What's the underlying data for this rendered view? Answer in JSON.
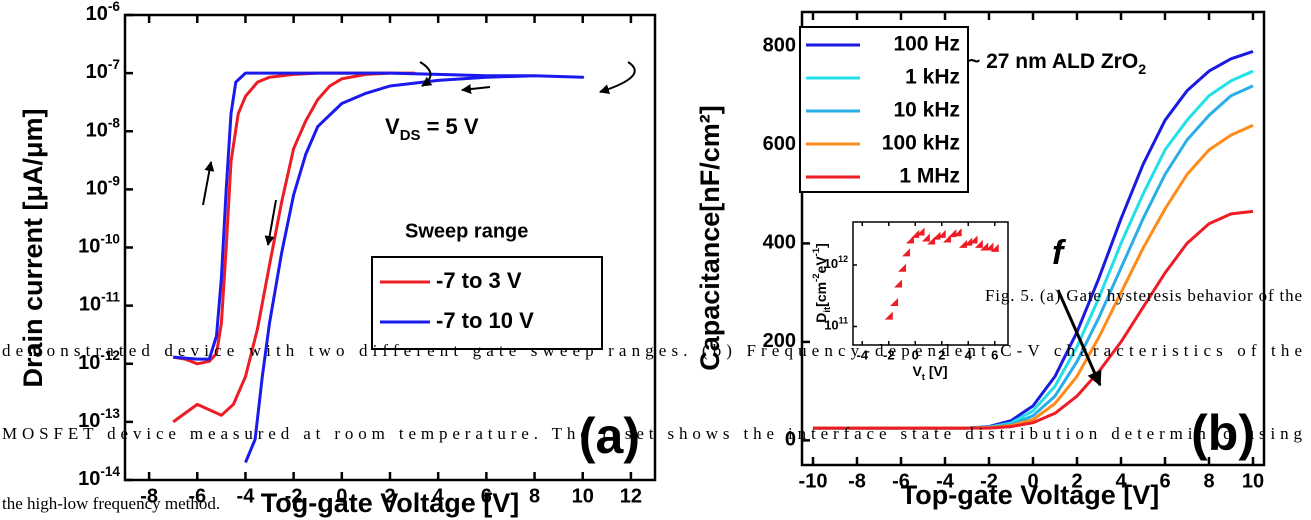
{
  "chart_data": [
    {
      "type": "line",
      "y_label": "Drain current [μA/μm]",
      "x_label": "Tog-gate Voltage [V]",
      "log_y": true,
      "xlim": [
        -9,
        13
      ],
      "xticks": [
        -8,
        -6,
        -4,
        -2,
        0,
        2,
        4,
        6,
        8,
        10,
        12
      ],
      "ylim": [
        1e-14,
        1e-06
      ],
      "yticks": [
        {
          "value": 1e-06,
          "label": [
            "10",
            "-6"
          ]
        },
        {
          "value": 1e-07,
          "label": [
            "10",
            "-7"
          ]
        },
        {
          "value": 1e-08,
          "label": [
            "10",
            "-8"
          ]
        },
        {
          "value": 1e-09,
          "label": [
            "10",
            "-9"
          ]
        },
        {
          "value": 1e-10,
          "label": [
            "10",
            "-10"
          ]
        },
        {
          "value": 1e-11,
          "label": [
            "10",
            "-11"
          ]
        },
        {
          "value": 1e-12,
          "label": [
            "10",
            "-12"
          ]
        },
        {
          "value": 1e-13,
          "label": [
            "10",
            "-13"
          ]
        },
        {
          "value": 1e-14,
          "label": [
            "10",
            "-14"
          ]
        }
      ],
      "annotations": {
        "vds": [
          "V",
          "DS",
          " = 5 V"
        ],
        "legend_title": "Sweep range",
        "panel": "(a)"
      },
      "series": [
        {
          "name": "-7 to 3 V",
          "color": "#ee1c24",
          "x": [
            -7,
            -6.5,
            -6,
            -5.5,
            -5.2,
            -5,
            -4.8,
            -4.6,
            -4.3,
            -4,
            -3.5,
            -3,
            -2,
            -1,
            0,
            1,
            2,
            3,
            2,
            1,
            0,
            -0.5,
            -1,
            -1.5,
            -2,
            -2.5,
            -3,
            -3.5,
            -4,
            -4.5,
            -5,
            -6,
            -7
          ],
          "values": [
            1.3e-12,
            1.2e-12,
            1e-12,
            1.1e-12,
            1.5e-12,
            5e-12,
            1e-10,
            3e-09,
            2e-08,
            4e-08,
            7e-08,
            8.5e-08,
            9.5e-08,
            1e-07,
            1e-07,
            1e-07,
            1e-07,
            1e-07,
            1e-07,
            9.5e-08,
            8e-08,
            6e-08,
            3.5e-08,
            1.5e-08,
            5e-09,
            6e-10,
            5e-11,
            4e-12,
            6e-13,
            2e-13,
            1.3e-13,
            2e-13,
            1e-13
          ]
        },
        {
          "name": "-7 to 10 V",
          "color": "#1a1aee",
          "x": [
            -7,
            -6,
            -5.5,
            -5.2,
            -5,
            -4.8,
            -4.6,
            -4.4,
            -4,
            -3,
            -2,
            0,
            2,
            4,
            6,
            8,
            10,
            8,
            6,
            4,
            2,
            1,
            0,
            -1,
            -1.5,
            -2,
            -2.5,
            -3,
            -3.3,
            -3.6,
            -4
          ],
          "values": [
            1.3e-12,
            1.2e-12,
            1.2e-12,
            3e-12,
            3e-11,
            1e-09,
            2e-08,
            7e-08,
            1e-07,
            1e-07,
            1e-07,
            1e-07,
            1e-07,
            9.5e-08,
            9e-08,
            9e-08,
            8.5e-08,
            9e-08,
            8.5e-08,
            7.5e-08,
            6e-08,
            4.5e-08,
            3e-08,
            1.2e-08,
            4e-09,
            8e-10,
            8e-11,
            5e-12,
            6e-13,
            5e-14,
            2e-14
          ]
        }
      ]
    },
    {
      "type": "line",
      "y_label": "Capacitance[nF/cm²]",
      "x_label": "Top-gate Voltage [V]",
      "xlim": [
        -10.5,
        10.5
      ],
      "xticks": [
        -10,
        -8,
        -6,
        -4,
        -2,
        0,
        2,
        4,
        6,
        8,
        10
      ],
      "ylim": [
        -50,
        870
      ],
      "yticks": [
        0,
        200,
        400,
        600,
        800
      ],
      "annotations": {
        "oxide": [
          "~ 27 nm ALD ZrO",
          "2"
        ],
        "panel": "(b)",
        "freq": "f"
      },
      "x": [
        -10,
        -9,
        -8,
        -7,
        -6,
        -5,
        -4,
        -3,
        -2,
        -1,
        0,
        1,
        2,
        3,
        4,
        5,
        6,
        7,
        8,
        9,
        10
      ],
      "series": [
        {
          "name": "100  Hz",
          "color": "#1a1ae0",
          "values": [
            25,
            25,
            25,
            25,
            25,
            25,
            25,
            25,
            28,
            40,
            70,
            130,
            220,
            330,
            450,
            560,
            650,
            710,
            750,
            775,
            790
          ]
        },
        {
          "name": "1  kHz",
          "color": "#22e0e8",
          "values": [
            25,
            25,
            25,
            25,
            25,
            25,
            25,
            25,
            27,
            35,
            60,
            110,
            190,
            290,
            400,
            500,
            590,
            650,
            700,
            730,
            750
          ]
        },
        {
          "name": "10 kHz",
          "color": "#29aee8",
          "values": [
            25,
            25,
            25,
            25,
            25,
            25,
            25,
            25,
            26,
            32,
            50,
            90,
            160,
            250,
            350,
            450,
            540,
            610,
            660,
            700,
            720
          ]
        },
        {
          "name": "100 kHz",
          "color": "#ff8c1a",
          "values": [
            25,
            25,
            25,
            25,
            25,
            25,
            25,
            25,
            26,
            30,
            42,
            75,
            130,
            210,
            300,
            390,
            470,
            540,
            590,
            620,
            640
          ]
        },
        {
          "name": "1  MHz",
          "color": "#ee1c24",
          "values": [
            25,
            25,
            25,
            25,
            25,
            25,
            25,
            25,
            25,
            28,
            36,
            55,
            90,
            140,
            200,
            270,
            340,
            400,
            440,
            460,
            465
          ]
        }
      ]
    },
    {
      "type": "scatter",
      "y_label": [
        "D",
        "it",
        "[cm",
        "-2",
        "eV",
        "-1",
        "]"
      ],
      "x_label": [
        "V",
        "t",
        " [V]"
      ],
      "log_y": true,
      "xlim": [
        -4.7,
        7
      ],
      "xticks": [
        -4,
        -2,
        0,
        2,
        4,
        6
      ],
      "ylim": [
        50000000000.0,
        5000000000000.0
      ],
      "yticks": [
        {
          "value": 100000000000.0,
          "label": [
            "10",
            "11"
          ]
        },
        {
          "value": 1000000000000.0,
          "label": [
            "10",
            "12"
          ]
        }
      ],
      "color": "#ee1c24",
      "x": [
        -2,
        -1.6,
        -1.3,
        -1,
        -0.7,
        -0.4,
        0,
        0.4,
        0.8,
        1.2,
        1.6,
        2,
        2.4,
        2.8,
        3.2,
        3.6,
        4,
        4.4,
        4.8,
        5.2,
        5.6,
        6
      ],
      "values": [
        150000000000.0,
        250000000000.0,
        500000000000.0,
        900000000000.0,
        1600000000000.0,
        2600000000000.0,
        3200000000000.0,
        3500000000000.0,
        2800000000000.0,
        2500000000000.0,
        3000000000000.0,
        3200000000000.0,
        2700000000000.0,
        3300000000000.0,
        3400000000000.0,
        2200000000000.0,
        2400000000000.0,
        2600000000000.0,
        2200000000000.0,
        2000000000000.0,
        2000000000000.0,
        1900000000000.0
      ]
    }
  ],
  "caption": [
    "Fig. 5. (a) Gate hysteresis behavior of the",
    "demonstrated device with two different gate sweep ranges. (b) Frequency-dependent C-V characteristics of the",
    "MOSFET device measured at room temperature. The inset shows the interface state distribution determined using",
    "the high-low frequency method."
  ]
}
